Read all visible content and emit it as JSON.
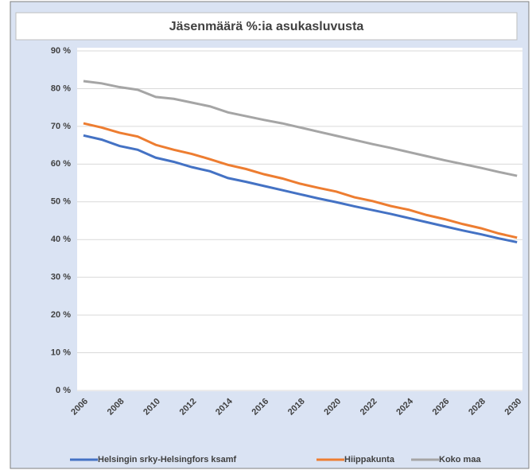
{
  "chart_data": {
    "type": "line",
    "title": "Jäsenmäärä %:ia asukasluvusta",
    "x": [
      2006,
      2007,
      2008,
      2009,
      2010,
      2011,
      2012,
      2013,
      2014,
      2015,
      2016,
      2017,
      2018,
      2019,
      2020,
      2021,
      2022,
      2023,
      2024,
      2025,
      2026,
      2027,
      2028,
      2029,
      2030
    ],
    "series": [
      {
        "name": "Helsingin srky-Helsingfors ksamf",
        "color": "#4472c4",
        "values": [
          67.6,
          66.5,
          64.8,
          63.8,
          61.7,
          60.6,
          59.2,
          58.1,
          56.3,
          55.3,
          54.2,
          53.1,
          52.0,
          50.9,
          49.9,
          48.8,
          47.8,
          46.8,
          45.7,
          44.6,
          43.5,
          42.4,
          41.4,
          40.3,
          39.3
        ]
      },
      {
        "name": "Hiippakunta",
        "color": "#ed7d31",
        "values": [
          70.8,
          69.7,
          68.3,
          67.3,
          65.1,
          63.8,
          62.7,
          61.3,
          59.8,
          58.7,
          57.3,
          56.2,
          54.8,
          53.7,
          52.7,
          51.2,
          50.2,
          48.9,
          47.9,
          46.5,
          45.4,
          44.1,
          43.0,
          41.6,
          40.5
        ]
      },
      {
        "name": "Koko maa",
        "color": "#a5a5a5",
        "values": [
          82.0,
          81.4,
          80.4,
          79.7,
          77.8,
          77.3,
          76.3,
          75.3,
          73.7,
          72.7,
          71.7,
          70.8,
          69.7,
          68.6,
          67.5,
          66.4,
          65.3,
          64.3,
          63.2,
          62.1,
          61.0,
          60.0,
          59.0,
          57.9,
          56.9
        ]
      }
    ],
    "xlim": [
      2005.65,
      2030.3
    ],
    "xticks": [
      2006,
      2008,
      2010,
      2012,
      2014,
      2016,
      2018,
      2020,
      2022,
      2024,
      2026,
      2028,
      2030
    ],
    "ylim": [
      0,
      90
    ],
    "yticks": [
      {
        "value": 0,
        "label": "0 %"
      },
      {
        "value": 10,
        "label": "10 %"
      },
      {
        "value": 20,
        "label": "20 %"
      },
      {
        "value": 30,
        "label": "30 %"
      },
      {
        "value": 40,
        "label": "40 %"
      },
      {
        "value": 50,
        "label": "50 %"
      },
      {
        "value": 60,
        "label": "60 %"
      },
      {
        "value": 70,
        "label": "70 %"
      },
      {
        "value": 80,
        "label": "80 %"
      },
      {
        "value": 90,
        "label": "90 %"
      }
    ],
    "grid": true,
    "legend": "bottom"
  }
}
